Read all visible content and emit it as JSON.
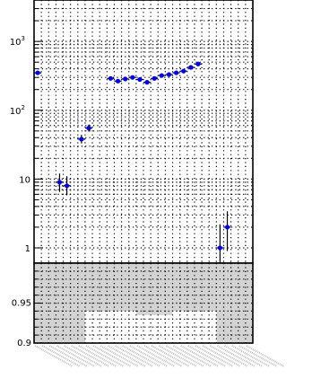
{
  "chart_data": [
    {
      "type": "scatter",
      "yscale": "log",
      "ylim": [
        0.6,
        4000
      ],
      "y_ticks": [
        {
          "value": 1,
          "label": "1"
        },
        {
          "value": 10,
          "label": "10"
        },
        {
          "value": 100,
          "label": "10",
          "exp": "2"
        },
        {
          "value": 1000,
          "label": "10",
          "exp": "3"
        }
      ],
      "grid": true,
      "marker_color": "#0000ff",
      "bin_count": 30,
      "points": [
        {
          "bin": 0,
          "y": 350,
          "lo": 330,
          "hi": 370
        },
        {
          "bin": 3,
          "y": 9,
          "lo": 6.5,
          "hi": 12
        },
        {
          "bin": 4,
          "y": 8,
          "lo": 5.8,
          "hi": 11
        },
        {
          "bin": 6,
          "y": 38,
          "lo": 33,
          "hi": 44
        },
        {
          "bin": 7,
          "y": 55,
          "lo": 49,
          "hi": 62
        },
        {
          "bin": 10,
          "y": 290,
          "lo": 275,
          "hi": 305
        },
        {
          "bin": 11,
          "y": 265,
          "lo": 250,
          "hi": 280
        },
        {
          "bin": 12,
          "y": 285,
          "lo": 270,
          "hi": 300
        },
        {
          "bin": 13,
          "y": 300,
          "lo": 285,
          "hi": 315
        },
        {
          "bin": 14,
          "y": 280,
          "lo": 265,
          "hi": 295
        },
        {
          "bin": 15,
          "y": 255,
          "lo": 240,
          "hi": 270
        },
        {
          "bin": 16,
          "y": 290,
          "lo": 275,
          "hi": 305
        },
        {
          "bin": 17,
          "y": 320,
          "lo": 305,
          "hi": 335
        },
        {
          "bin": 18,
          "y": 330,
          "lo": 315,
          "hi": 345
        },
        {
          "bin": 19,
          "y": 350,
          "lo": 335,
          "hi": 365
        },
        {
          "bin": 20,
          "y": 370,
          "lo": 355,
          "hi": 385
        },
        {
          "bin": 21,
          "y": 420,
          "lo": 400,
          "hi": 440
        },
        {
          "bin": 22,
          "y": 470,
          "lo": 450,
          "hi": 490
        },
        {
          "bin": 25,
          "y": 1,
          "lo": 0.6,
          "hi": 2.2
        },
        {
          "bin": 26,
          "y": 2,
          "lo": 0.9,
          "hi": 3.4
        }
      ]
    },
    {
      "type": "area",
      "ylim": [
        0.9,
        1.0
      ],
      "y_ticks": [
        {
          "value": 0.95,
          "label": "0.95"
        },
        {
          "value": 0.9,
          "label": "0.9"
        }
      ],
      "grid": true,
      "band_color": "#d3d3d3",
      "band_segments": [
        {
          "from_bin": 0,
          "to_bin": 7,
          "lower": 0.9
        },
        {
          "from_bin": 7,
          "to_bin": 14,
          "lower": 0.94
        },
        {
          "from_bin": 14,
          "to_bin": 19,
          "lower": 0.935
        },
        {
          "from_bin": 19,
          "to_bin": 25,
          "lower": 0.94
        },
        {
          "from_bin": 25,
          "to_bin": 30,
          "lower": 0.9
        }
      ]
    }
  ]
}
